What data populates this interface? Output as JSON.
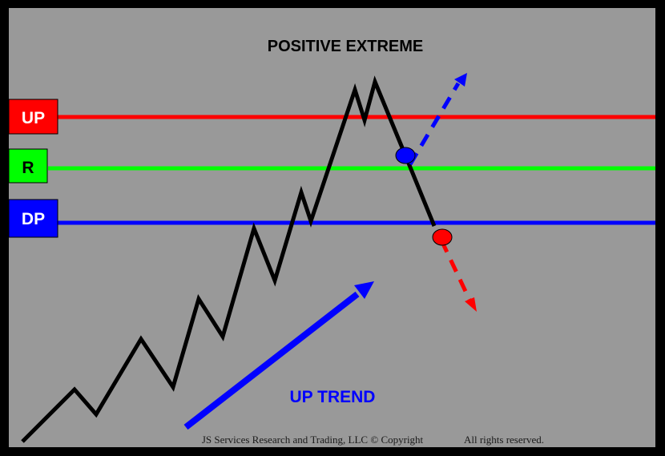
{
  "title": "POSITIVE EXTREME",
  "levels": [
    {
      "id": "up",
      "label": "UP",
      "color": "#ff0000",
      "text_color": "#ffffff"
    },
    {
      "id": "r",
      "label": "R",
      "color": "#00ff00",
      "text_color": "#000000"
    },
    {
      "id": "dp",
      "label": "DP",
      "color": "#0000ff",
      "text_color": "#ffffff"
    }
  ],
  "trend_label": "UP TREND",
  "trend_color": "#0000ff",
  "footer": {
    "copyright": "JS Services Research and Trading, LLC © Copyright",
    "rights": "All rights reserved."
  },
  "colors": {
    "background": "#999999",
    "frame": "#000000",
    "price_line": "#000000",
    "breakout_marker": "#0000ff",
    "breakdown_marker": "#ff0000"
  }
}
